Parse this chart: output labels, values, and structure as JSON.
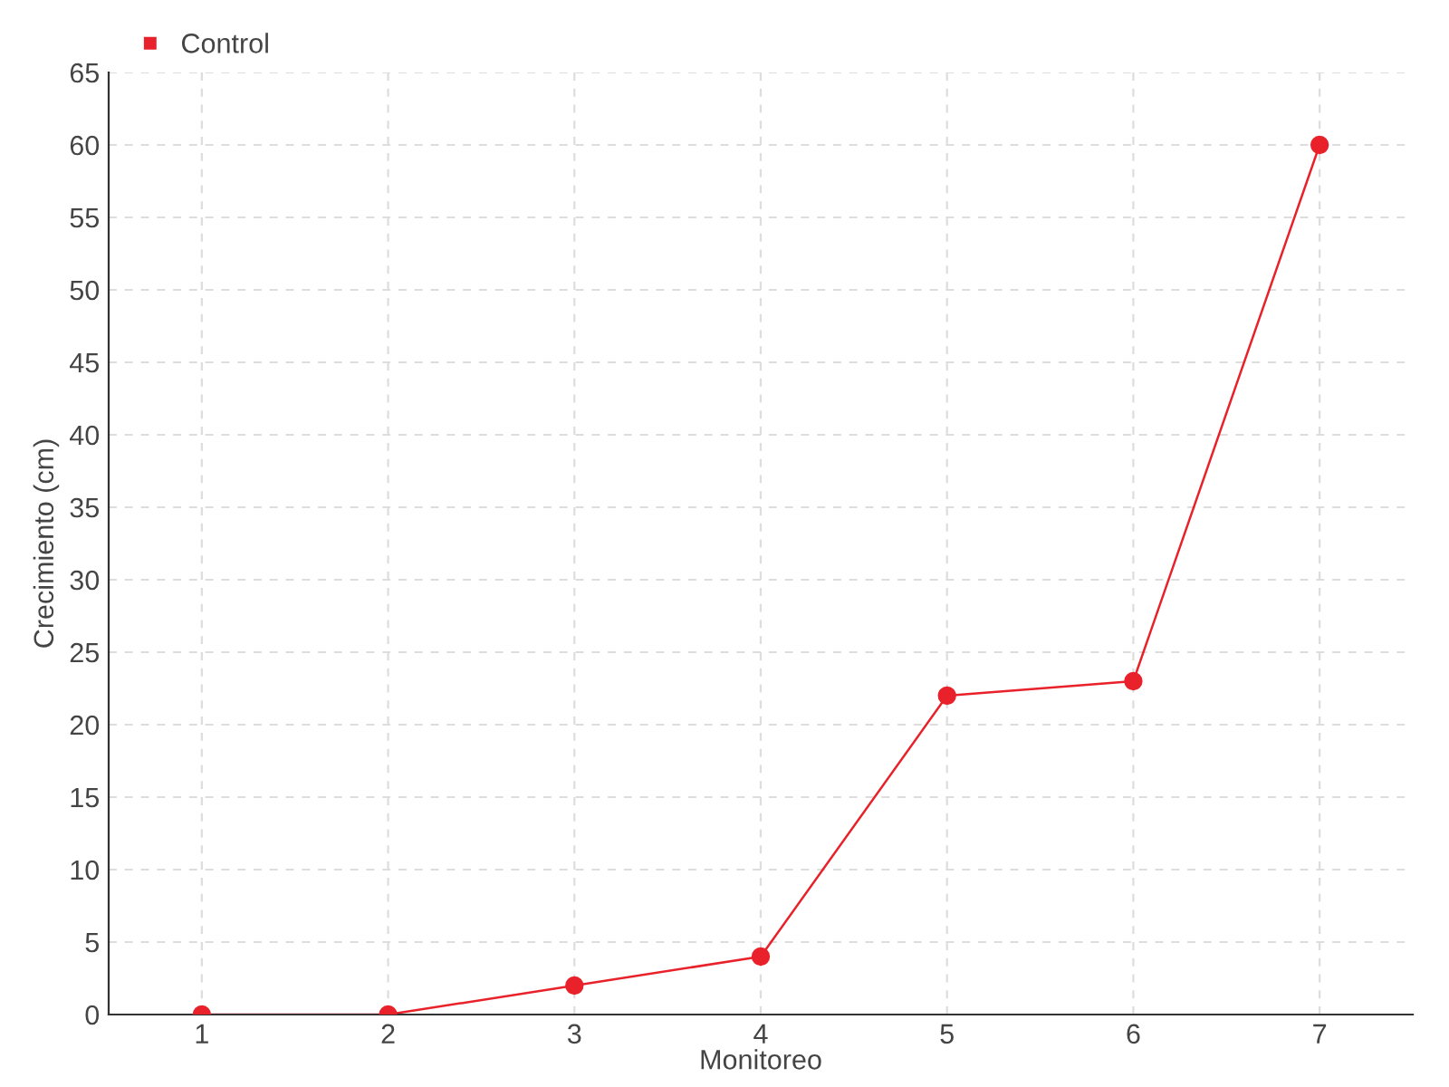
{
  "chart_data": {
    "type": "line",
    "xlabel": "Monitoreo",
    "ylabel": "Crecimiento (cm)",
    "categories": [
      "1",
      "2",
      "3",
      "4",
      "5",
      "6",
      "7"
    ],
    "series": [
      {
        "name": "Control",
        "color": "#e8212a",
        "values": [
          0,
          0,
          2,
          4,
          22,
          23,
          60
        ]
      }
    ],
    "ylim": [
      0,
      65
    ],
    "yticks": [
      0,
      5,
      10,
      15,
      20,
      25,
      30,
      35,
      40,
      45,
      50,
      55,
      60,
      65
    ],
    "grid": true,
    "legend": "top left",
    "marker": "circle",
    "line_style": "solid"
  }
}
